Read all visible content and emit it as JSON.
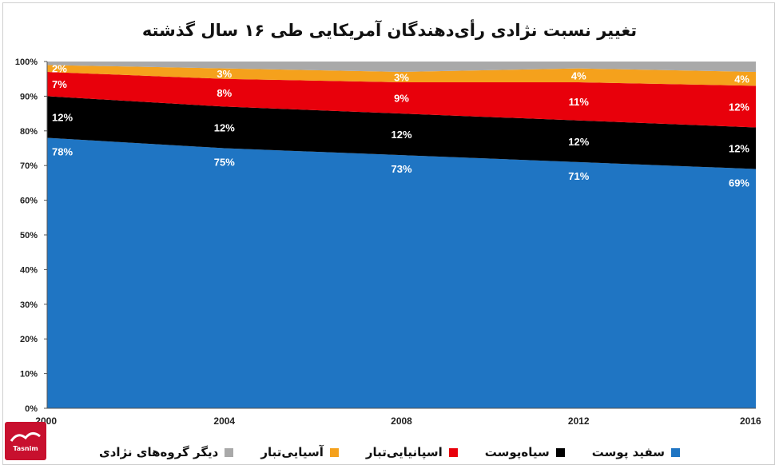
{
  "chart_data": {
    "type": "area",
    "stacked": true,
    "title": "تغییر نسبت نژادی رأی‌دهندگان آمریکایی طی ۱۶ سال گذشته",
    "x": [
      "2000",
      "2004",
      "2008",
      "2012",
      "2016"
    ],
    "y_ticks": [
      "0%",
      "10%",
      "20%",
      "30%",
      "40%",
      "50%",
      "60%",
      "70%",
      "80%",
      "90%",
      "100%"
    ],
    "ylim": [
      0,
      100
    ],
    "grid": false,
    "legend_position": "bottom",
    "series": [
      {
        "name": "سفید پوست",
        "color": "#1f75c3",
        "label_color": "#ffffff",
        "values": [
          78,
          75,
          73,
          71,
          69
        ],
        "labels": [
          "78%",
          "75%",
          "73%",
          "71%",
          "69%"
        ]
      },
      {
        "name": "سیاه‌پوست",
        "color": "#000000",
        "label_color": "#ffffff",
        "values": [
          12,
          12,
          12,
          12,
          12
        ],
        "labels": [
          "12%",
          "12%",
          "12%",
          "12%",
          "12%"
        ]
      },
      {
        "name": "اسپانیایی‌تبار",
        "color": "#e8000b",
        "label_color": "#ffffff",
        "values": [
          7,
          8,
          9,
          11,
          12
        ],
        "labels": [
          "7%",
          "8%",
          "9%",
          "11%",
          "12%"
        ]
      },
      {
        "name": "آسیایی‌تبار",
        "color": "#f5a11c",
        "label_color": "#ffffff",
        "values": [
          2,
          3,
          3,
          4,
          4
        ],
        "labels": [
          "2%",
          "3%",
          "3%",
          "4%",
          "4%"
        ]
      },
      {
        "name": "دیگر گروه‌های نژادی",
        "color": "#a9a9a9",
        "label_color": "#ffffff",
        "values": [
          1,
          2,
          3,
          2,
          3
        ],
        "labels": []
      }
    ]
  },
  "logo": {
    "text": "تسنیم",
    "subtext": "Tasnim",
    "color": "#c8102e"
  }
}
